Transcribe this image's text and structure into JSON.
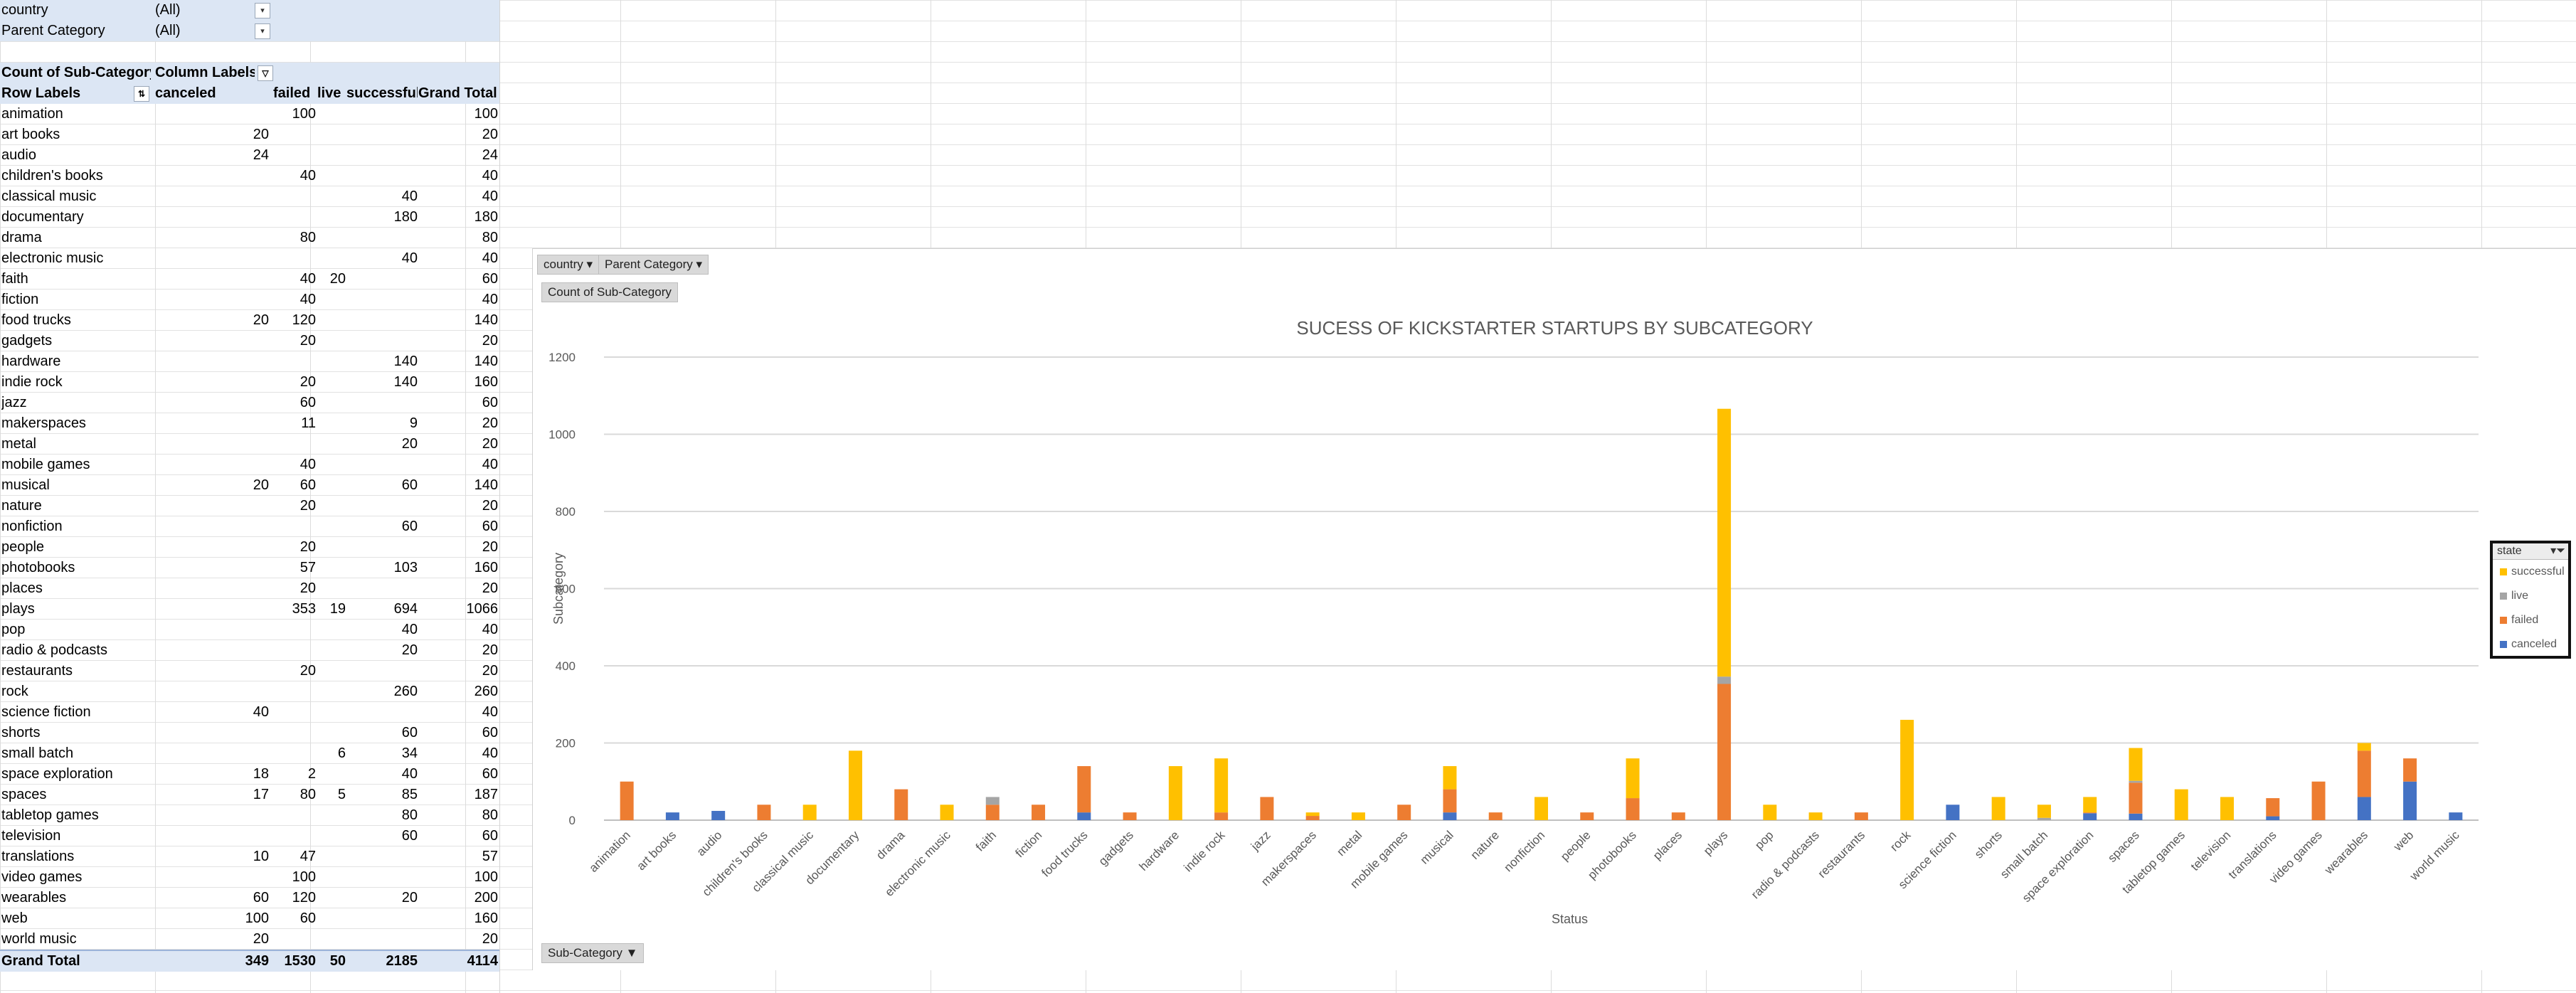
{
  "filters": [
    {
      "label": "country",
      "value": "(All)"
    },
    {
      "label": "Parent Category",
      "value": "(All)"
    }
  ],
  "pivot": {
    "corner": "Count of Sub-Category",
    "column_labels": "Column Labels",
    "row_labels": "Row Labels",
    "columns": [
      "canceled",
      "failed",
      "live",
      "successful",
      "Grand Total"
    ],
    "rows": [
      {
        "label": "animation",
        "canceled": "",
        "failed": "100",
        "live": "",
        "successful": "",
        "total": "100"
      },
      {
        "label": "art books",
        "canceled": "20",
        "failed": "",
        "live": "",
        "successful": "",
        "total": "20"
      },
      {
        "label": "audio",
        "canceled": "24",
        "failed": "",
        "live": "",
        "successful": "",
        "total": "24"
      },
      {
        "label": "children's books",
        "canceled": "",
        "failed": "40",
        "live": "",
        "successful": "",
        "total": "40"
      },
      {
        "label": "classical music",
        "canceled": "",
        "failed": "",
        "live": "",
        "successful": "40",
        "total": "40"
      },
      {
        "label": "documentary",
        "canceled": "",
        "failed": "",
        "live": "",
        "successful": "180",
        "total": "180"
      },
      {
        "label": "drama",
        "canceled": "",
        "failed": "80",
        "live": "",
        "successful": "",
        "total": "80"
      },
      {
        "label": "electronic music",
        "canceled": "",
        "failed": "",
        "live": "",
        "successful": "40",
        "total": "40"
      },
      {
        "label": "faith",
        "canceled": "",
        "failed": "40",
        "live": "20",
        "successful": "",
        "total": "60"
      },
      {
        "label": "fiction",
        "canceled": "",
        "failed": "40",
        "live": "",
        "successful": "",
        "total": "40"
      },
      {
        "label": "food trucks",
        "canceled": "20",
        "failed": "120",
        "live": "",
        "successful": "",
        "total": "140"
      },
      {
        "label": "gadgets",
        "canceled": "",
        "failed": "20",
        "live": "",
        "successful": "",
        "total": "20"
      },
      {
        "label": "hardware",
        "canceled": "",
        "failed": "",
        "live": "",
        "successful": "140",
        "total": "140"
      },
      {
        "label": "indie rock",
        "canceled": "",
        "failed": "20",
        "live": "",
        "successful": "140",
        "total": "160"
      },
      {
        "label": "jazz",
        "canceled": "",
        "failed": "60",
        "live": "",
        "successful": "",
        "total": "60"
      },
      {
        "label": "makerspaces",
        "canceled": "",
        "failed": "11",
        "live": "",
        "successful": "9",
        "total": "20"
      },
      {
        "label": "metal",
        "canceled": "",
        "failed": "",
        "live": "",
        "successful": "20",
        "total": "20"
      },
      {
        "label": "mobile games",
        "canceled": "",
        "failed": "40",
        "live": "",
        "successful": "",
        "total": "40"
      },
      {
        "label": "musical",
        "canceled": "20",
        "failed": "60",
        "live": "",
        "successful": "60",
        "total": "140"
      },
      {
        "label": "nature",
        "canceled": "",
        "failed": "20",
        "live": "",
        "successful": "",
        "total": "20"
      },
      {
        "label": "nonfiction",
        "canceled": "",
        "failed": "",
        "live": "",
        "successful": "60",
        "total": "60"
      },
      {
        "label": "people",
        "canceled": "",
        "failed": "20",
        "live": "",
        "successful": "",
        "total": "20"
      },
      {
        "label": "photobooks",
        "canceled": "",
        "failed": "57",
        "live": "",
        "successful": "103",
        "total": "160"
      },
      {
        "label": "places",
        "canceled": "",
        "failed": "20",
        "live": "",
        "successful": "",
        "total": "20"
      },
      {
        "label": "plays",
        "canceled": "",
        "failed": "353",
        "live": "19",
        "successful": "694",
        "total": "1066"
      },
      {
        "label": "pop",
        "canceled": "",
        "failed": "",
        "live": "",
        "successful": "40",
        "total": "40"
      },
      {
        "label": "radio & podcasts",
        "canceled": "",
        "failed": "",
        "live": "",
        "successful": "20",
        "total": "20"
      },
      {
        "label": "restaurants",
        "canceled": "",
        "failed": "20",
        "live": "",
        "successful": "",
        "total": "20"
      },
      {
        "label": "rock",
        "canceled": "",
        "failed": "",
        "live": "",
        "successful": "260",
        "total": "260"
      },
      {
        "label": "science fiction",
        "canceled": "40",
        "failed": "",
        "live": "",
        "successful": "",
        "total": "40"
      },
      {
        "label": "shorts",
        "canceled": "",
        "failed": "",
        "live": "",
        "successful": "60",
        "total": "60"
      },
      {
        "label": "small batch",
        "canceled": "",
        "failed": "",
        "live": "6",
        "successful": "34",
        "total": "40"
      },
      {
        "label": "space exploration",
        "canceled": "18",
        "failed": "2",
        "live": "",
        "successful": "40",
        "total": "60"
      },
      {
        "label": "spaces",
        "canceled": "17",
        "failed": "80",
        "live": "5",
        "successful": "85",
        "total": "187"
      },
      {
        "label": "tabletop games",
        "canceled": "",
        "failed": "",
        "live": "",
        "successful": "80",
        "total": "80"
      },
      {
        "label": "television",
        "canceled": "",
        "failed": "",
        "live": "",
        "successful": "60",
        "total": "60"
      },
      {
        "label": "translations",
        "canceled": "10",
        "failed": "47",
        "live": "",
        "successful": "",
        "total": "57"
      },
      {
        "label": "video games",
        "canceled": "",
        "failed": "100",
        "live": "",
        "successful": "",
        "total": "100"
      },
      {
        "label": "wearables",
        "canceled": "60",
        "failed": "120",
        "live": "",
        "successful": "20",
        "total": "200"
      },
      {
        "label": "web",
        "canceled": "100",
        "failed": "60",
        "live": "",
        "successful": "",
        "total": "160"
      },
      {
        "label": "world music",
        "canceled": "20",
        "failed": "",
        "live": "",
        "successful": "",
        "total": "20"
      }
    ],
    "grand_total": {
      "label": "Grand Total",
      "canceled": "349",
      "failed": "1530",
      "live": "50",
      "successful": "2185",
      "total": "4114"
    }
  },
  "chart_buttons": {
    "country": "country",
    "parent_category": "Parent Category",
    "value_field": "Count of Sub-Category",
    "axis_field": "Sub-Category"
  },
  "legend": {
    "title": "state",
    "items": [
      {
        "name": "successful",
        "color": "#ffc000"
      },
      {
        "name": "live",
        "color": "#a5a5a5"
      },
      {
        "name": "failed",
        "color": "#ed7d31"
      },
      {
        "name": "canceled",
        "color": "#4472c4"
      }
    ]
  },
  "chart_data": {
    "type": "bar",
    "stacked": true,
    "title": "SUCESS OF KICKSTARTER STARTUPS BY SUBCATEGORY",
    "xlabel": "Status",
    "ylabel": "Subcategory",
    "ylim": [
      0,
      1200
    ],
    "yticks": [
      0,
      200,
      400,
      600,
      800,
      1000,
      1200
    ],
    "grid": true,
    "legend_position": "right",
    "categories": [
      "animation",
      "art books",
      "audio",
      "children's books",
      "classical music",
      "documentary",
      "drama",
      "electronic music",
      "faith",
      "fiction",
      "food trucks",
      "gadgets",
      "hardware",
      "indie rock",
      "jazz",
      "makerspaces",
      "metal",
      "mobile games",
      "musical",
      "nature",
      "nonfiction",
      "people",
      "photobooks",
      "places",
      "plays",
      "pop",
      "radio & podcasts",
      "restaurants",
      "rock",
      "science fiction",
      "shorts",
      "small batch",
      "space exploration",
      "spaces",
      "tabletop games",
      "television",
      "translations",
      "video games",
      "wearables",
      "web",
      "world music"
    ],
    "series": [
      {
        "name": "canceled",
        "color": "#4472c4",
        "values": [
          0,
          20,
          24,
          0,
          0,
          0,
          0,
          0,
          0,
          0,
          20,
          0,
          0,
          0,
          0,
          0,
          0,
          0,
          20,
          0,
          0,
          0,
          0,
          0,
          0,
          0,
          0,
          0,
          0,
          40,
          0,
          0,
          18,
          17,
          0,
          0,
          10,
          0,
          60,
          100,
          20
        ]
      },
      {
        "name": "failed",
        "color": "#ed7d31",
        "values": [
          100,
          0,
          0,
          40,
          0,
          0,
          80,
          0,
          40,
          40,
          120,
          20,
          0,
          20,
          60,
          11,
          0,
          40,
          60,
          20,
          0,
          20,
          57,
          20,
          353,
          0,
          0,
          20,
          0,
          0,
          0,
          0,
          2,
          80,
          0,
          0,
          47,
          100,
          120,
          60,
          0
        ]
      },
      {
        "name": "live",
        "color": "#a5a5a5",
        "values": [
          0,
          0,
          0,
          0,
          0,
          0,
          0,
          0,
          20,
          0,
          0,
          0,
          0,
          0,
          0,
          0,
          0,
          0,
          0,
          0,
          0,
          0,
          0,
          0,
          19,
          0,
          0,
          0,
          0,
          0,
          0,
          6,
          0,
          5,
          0,
          0,
          0,
          0,
          0,
          0,
          0
        ]
      },
      {
        "name": "successful",
        "color": "#ffc000",
        "values": [
          0,
          0,
          0,
          0,
          40,
          180,
          0,
          40,
          0,
          0,
          0,
          0,
          140,
          140,
          0,
          9,
          20,
          0,
          60,
          0,
          60,
          0,
          103,
          0,
          694,
          40,
          20,
          0,
          260,
          0,
          60,
          34,
          40,
          85,
          80,
          60,
          0,
          0,
          20,
          0,
          0
        ]
      }
    ]
  }
}
